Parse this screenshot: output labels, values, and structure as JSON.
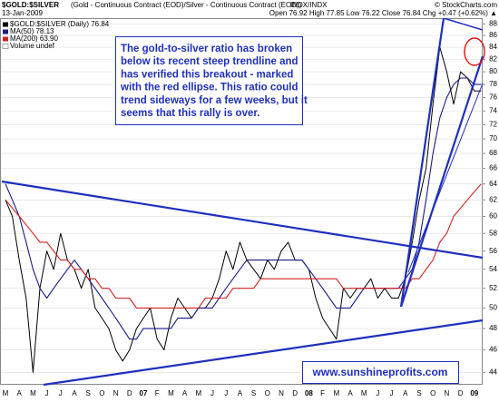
{
  "chart_data": {
    "type": "line",
    "title": "$GOLD:$SILVER",
    "subtitle": "(Gold - Continuous Contract (EOD)/Silver - Continuous Contract (EOD))",
    "exchange": "INDX/INDX",
    "date": "13-Jan-2009",
    "source": "© StockCharts.com",
    "quote": "Open 76.92  High 77.85  Low 76.22  Close 76.84  Chg +0.47 (+0.62%) ▲",
    "volume_note": "Volume undef",
    "annotation": [
      "The gold-to-silver ratio has broken",
      "below its recent steep trendline and",
      "has verified this breakout - marked",
      "with the red ellipse. This ratio could",
      "trend sideways for a few weeks, but it",
      "seems that this rally is over."
    ],
    "watermark": "www.sunshineprofits.com",
    "categories": [
      "M",
      null,
      "A",
      null,
      "M",
      null,
      "J",
      null,
      "J",
      null,
      "A",
      null,
      "S",
      null,
      "O",
      null,
      "N",
      null,
      "D",
      null,
      "07",
      null,
      "F",
      null,
      "M",
      null,
      "A",
      null,
      "M",
      null,
      "J",
      null,
      "J",
      null,
      "A",
      null,
      "S",
      null,
      "O",
      null,
      "N",
      null,
      "D",
      null,
      "08",
      null,
      "F",
      null,
      "M",
      null,
      "A",
      null,
      "M",
      null,
      "J",
      null,
      "J",
      null,
      "A",
      null,
      "S",
      null,
      "O",
      null,
      "N",
      null,
      "D",
      null,
      "09",
      null
    ],
    "series": [
      {
        "name": "$GOLD:$SILVER (Daily) 76.84",
        "color": "#000000",
        "values": [
          62,
          60,
          55,
          51,
          44,
          52,
          56,
          54,
          58,
          55,
          54,
          52,
          54,
          50,
          49,
          48,
          46,
          45,
          46,
          48,
          49,
          50,
          47,
          46,
          49,
          51,
          50,
          49,
          50,
          50,
          51,
          53,
          56,
          54,
          57,
          55,
          54,
          53,
          55,
          54,
          56,
          57,
          55,
          55,
          54,
          51,
          49,
          48,
          47,
          52,
          51,
          52,
          52,
          53,
          51,
          52,
          51,
          51,
          53,
          57,
          62,
          66,
          75,
          84,
          80,
          75,
          80,
          79,
          77,
          77
        ]
      },
      {
        "name": "MA(50) 78.13",
        "color": "#1a1a8c",
        "values": [
          64,
          62,
          60,
          57,
          54,
          52,
          51,
          52,
          53,
          54,
          55,
          54,
          53,
          52,
          51,
          50,
          49,
          48,
          47,
          47,
          48,
          48,
          48,
          48,
          48,
          49,
          49,
          49,
          50,
          50,
          50,
          51,
          52,
          53,
          54,
          55,
          55,
          55,
          55,
          55,
          55,
          55,
          55,
          55,
          54,
          53,
          52,
          51,
          50,
          50,
          50,
          51,
          52,
          52,
          52,
          52,
          52,
          52,
          53,
          54,
          57,
          62,
          68,
          73,
          76,
          78,
          79,
          79,
          78,
          78
        ]
      },
      {
        "name": "MA(200) 63.90",
        "color": "#d42020",
        "values": [
          62,
          61,
          60,
          59,
          58,
          57,
          57,
          56,
          55,
          55,
          54,
          54,
          53,
          53,
          52,
          52,
          51,
          51,
          51,
          50,
          50,
          50,
          50,
          50,
          50,
          50,
          50,
          50,
          50,
          51,
          51,
          51,
          51,
          52,
          52,
          52,
          52,
          53,
          53,
          53,
          53,
          53,
          53,
          53,
          53,
          53,
          53,
          53,
          53,
          52,
          52,
          52,
          52,
          52,
          52,
          52,
          52,
          52,
          52,
          53,
          53,
          54,
          55,
          57,
          58,
          60,
          61,
          62,
          63,
          64
        ]
      }
    ],
    "ylim": [
      43,
      89
    ],
    "yticks": [
      44,
      46,
      48,
      50,
      52,
      54,
      56,
      58,
      60,
      62,
      64,
      66,
      68,
      70,
      72,
      74,
      76,
      78,
      80,
      82,
      84,
      86,
      88
    ],
    "log_scale": true,
    "grid": true
  }
}
